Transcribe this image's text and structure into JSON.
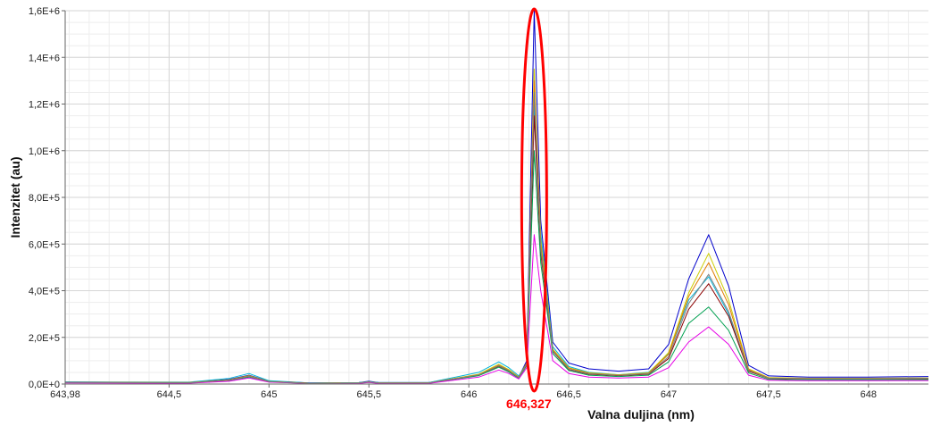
{
  "chart_data": {
    "type": "line",
    "title": "",
    "xlabel": "Valna duljina (nm)",
    "ylabel": "Intenzitet (au)",
    "xlim": [
      643.98,
      648.3
    ],
    "ylim": [
      0,
      1600000
    ],
    "grid": true,
    "x_ticks": [
      643.98,
      644.5,
      645,
      645.5,
      646,
      646.5,
      647,
      647.5,
      648
    ],
    "x_tick_labels": [
      "643,98",
      "644,5",
      "645",
      "645,5",
      "646",
      "646,5",
      "647",
      "647,5",
      "648"
    ],
    "y_ticks": [
      0,
      200000,
      400000,
      600000,
      800000,
      1000000,
      1200000,
      1400000,
      1600000
    ],
    "y_tick_labels": [
      "0,0E+0",
      "2,0E+5",
      "4,0E+5",
      "6,0E+5",
      "8,0E+5",
      "1,0E+6",
      "1,2E+6",
      "1,4E+6",
      "1,6E+6"
    ],
    "x": [
      643.98,
      644.6,
      644.8,
      644.9,
      645.0,
      645.2,
      645.45,
      645.5,
      645.55,
      645.8,
      646.05,
      646.15,
      646.2,
      646.25,
      646.29,
      646.327,
      646.36,
      646.42,
      646.5,
      646.6,
      646.75,
      646.9,
      647.0,
      647.1,
      647.2,
      647.3,
      647.4,
      647.5,
      647.7,
      648.0,
      648.3
    ],
    "series": [
      {
        "color": "#0000cc",
        "values": [
          8000,
          7000,
          20000,
          38000,
          12000,
          5000,
          6000,
          12000,
          6000,
          6000,
          40000,
          80000,
          60000,
          30000,
          100000,
          1600000,
          700000,
          180000,
          90000,
          65000,
          55000,
          65000,
          170000,
          450000,
          640000,
          420000,
          80000,
          35000,
          30000,
          30000,
          32000
        ]
      },
      {
        "color": "#00b4d8",
        "values": [
          9000,
          8000,
          24000,
          45000,
          14000,
          5000,
          6000,
          10000,
          6000,
          6000,
          50000,
          95000,
          70000,
          35000,
          90000,
          1200000,
          650000,
          160000,
          75000,
          50000,
          40000,
          50000,
          130000,
          360000,
          460000,
          300000,
          60000,
          25000,
          22000,
          22000,
          24000
        ]
      },
      {
        "color": "#cccc00",
        "values": [
          7000,
          6000,
          18000,
          36000,
          11000,
          4000,
          5000,
          9000,
          5000,
          5000,
          42000,
          85000,
          62000,
          30000,
          90000,
          1350000,
          620000,
          150000,
          70000,
          48000,
          40000,
          48000,
          135000,
          390000,
          560000,
          360000,
          65000,
          28000,
          25000,
          25000,
          26000
        ]
      },
      {
        "color": "#e07a00",
        "values": [
          7000,
          6000,
          17000,
          34000,
          10000,
          4000,
          5000,
          9000,
          5000,
          5000,
          40000,
          80000,
          58000,
          28000,
          90000,
          1300000,
          600000,
          145000,
          68000,
          46000,
          38000,
          46000,
          128000,
          375000,
          520000,
          340000,
          62000,
          26000,
          24000,
          24000,
          25000
        ]
      },
      {
        "color": "#8b0000",
        "values": [
          6000,
          5000,
          16000,
          32000,
          10000,
          4000,
          4000,
          8000,
          4000,
          4000,
          38000,
          76000,
          56000,
          27000,
          85000,
          1150000,
          560000,
          140000,
          62000,
          42000,
          36000,
          42000,
          110000,
          320000,
          430000,
          290000,
          55000,
          24000,
          22000,
          22000,
          23000
        ]
      },
      {
        "color": "#00a050",
        "values": [
          6000,
          5000,
          15000,
          30000,
          9000,
          3000,
          4000,
          8000,
          4000,
          4000,
          36000,
          72000,
          52000,
          25000,
          80000,
          1000000,
          520000,
          130000,
          58000,
          38000,
          32000,
          38000,
          95000,
          260000,
          330000,
          230000,
          48000,
          20000,
          18000,
          18000,
          19000
        ]
      },
      {
        "color": "#e600e6",
        "values": [
          5000,
          4000,
          12000,
          26000,
          8000,
          3000,
          3000,
          7000,
          3000,
          3000,
          30000,
          60000,
          45000,
          22000,
          70000,
          640000,
          400000,
          100000,
          45000,
          30000,
          26000,
          30000,
          70000,
          180000,
          245000,
          170000,
          38000,
          16000,
          14000,
          14000,
          15000
        ]
      },
      {
        "color": "#7f7f7f",
        "values": [
          6500,
          5500,
          16000,
          33000,
          10000,
          3500,
          4500,
          8500,
          4500,
          4500,
          39000,
          78000,
          57000,
          27000,
          85000,
          1250000,
          580000,
          142000,
          64000,
          44000,
          37000,
          44000,
          118000,
          345000,
          470000,
          310000,
          58000,
          25000,
          23000,
          23000,
          24000
        ]
      }
    ],
    "annotation": {
      "label": "646,327",
      "x": 646.327,
      "color": "#ff0000"
    }
  }
}
